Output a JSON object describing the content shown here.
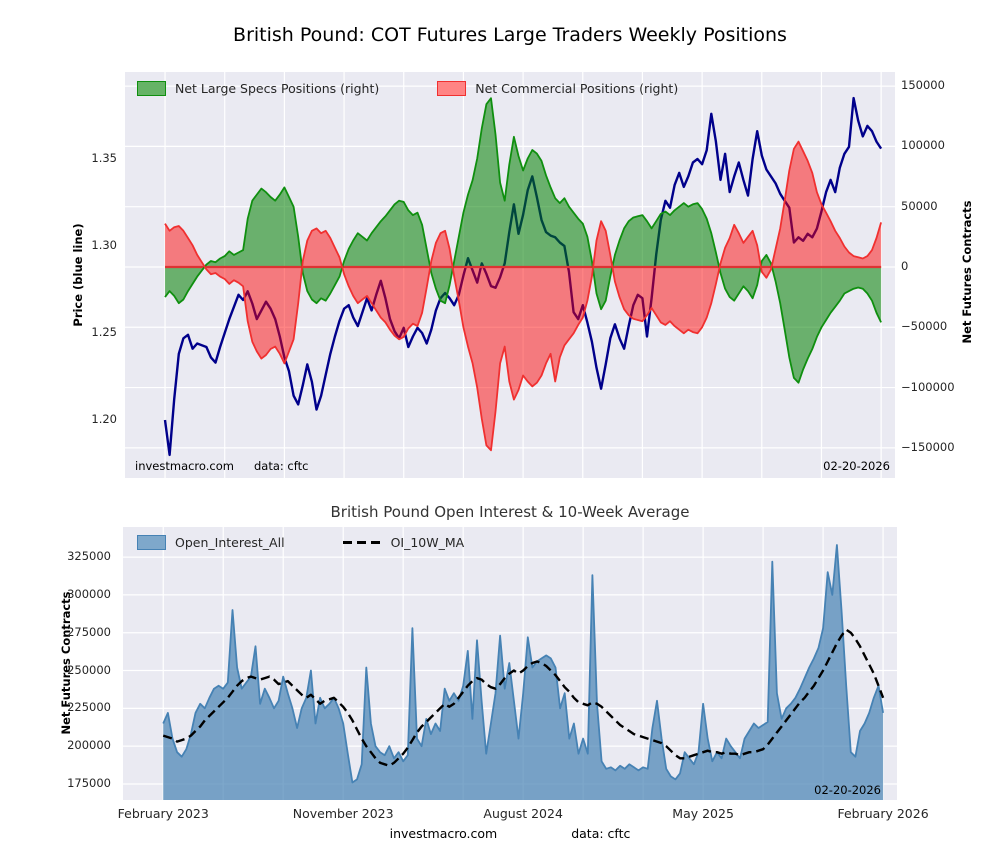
{
  "figure": {
    "title": "British Pound: COT Futures Large Traders Weekly Positions",
    "footer_source": "investmacro.com",
    "footer_data": "data: cftc"
  },
  "top_chart": {
    "legend_specs": "Net Large Specs Positions (right)",
    "legend_comm": "Net Commercial Positions (right)",
    "ylabel_left": "Price (blue line)",
    "ylabel_right": "Net Futures Contracts",
    "annotation_source": "investmacro.com",
    "annotation_data": "data: cftc",
    "annotation_date": "02-20-2026"
  },
  "bottom_chart": {
    "title": "British Pound Open Interest & 10-Week Average",
    "legend_oi": "Open_Interest_All",
    "legend_ma": "OI_10W_MA",
    "ylabel": "Net Futures Contracts",
    "annotation_date": "02-20-2026"
  },
  "colors": {
    "axes_bg": "#eaeaf2",
    "grid": "#ffffff",
    "price_line": "#00008b",
    "specs_fill": "rgba(0,128,0,0.55)",
    "specs_edge": "#0f8f0f",
    "comm_fill": "rgba(255,0,0,0.48)",
    "comm_edge": "#f03030",
    "zero_line": "#dd3333",
    "oi_fill": "rgba(70,130,180,0.7)",
    "oi_edge": "#4682b4",
    "ma_line": "#000000",
    "legend_specs_swatch": "#66b366",
    "legend_comm_swatch": "#ff8484",
    "legend_oi_swatch": "#7ea8cb"
  },
  "chart_data": [
    {
      "type": "area+line",
      "title": "British Pound: COT Futures Large Traders Weekly Positions",
      "weeks": 157,
      "x_unit": "week_index (Feb 2023 - Feb 2026, weekly)",
      "x_frac_start": 0.052,
      "x_frac_end": 0.982,
      "x_ticks": [
        {
          "week": 0,
          "label": "February 2023"
        },
        {
          "week": 39,
          "label": "November 2023"
        },
        {
          "week": 78,
          "label": "August 2024"
        },
        {
          "week": 117,
          "label": "May 2025"
        },
        {
          "week": 156,
          "label": "February 2026"
        }
      ],
      "grid_interval_weeks": 13,
      "left_axis": {
        "label": "Price (blue line)",
        "range": [
          1.1667,
          1.4
        ],
        "ticks": [
          {
            "v": 1.2,
            "label": "1.20"
          },
          {
            "v": 1.25,
            "label": "1.25"
          },
          {
            "v": 1.3,
            "label": "1.30"
          },
          {
            "v": 1.35,
            "label": "1.35"
          }
        ]
      },
      "right_axis": {
        "label": "Net Futures Contracts",
        "range": [
          -175000,
          161700
        ],
        "ticks": [
          {
            "v": 150000,
            "label": "150000"
          },
          {
            "v": 100000,
            "label": "100000"
          },
          {
            "v": 50000,
            "label": "50000"
          },
          {
            "v": 0,
            "label": "0"
          },
          {
            "v": -50000,
            "label": "−50000"
          },
          {
            "v": -100000,
            "label": "−100000"
          },
          {
            "v": -150000,
            "label": "−150000"
          }
        ]
      },
      "contracts_scale": 1000,
      "annotations": [
        "investmacro.com",
        "data: cftc",
        "02-20-2026"
      ],
      "series": {
        "price": [
          1.2,
          1.18,
          1.212,
          1.238,
          1.247,
          1.249,
          1.241,
          1.244,
          1.243,
          1.242,
          1.236,
          1.233,
          1.242,
          1.25,
          1.258,
          1.265,
          1.272,
          1.269,
          1.274,
          1.267,
          1.258,
          1.263,
          1.268,
          1.264,
          1.258,
          1.248,
          1.236,
          1.228,
          1.214,
          1.209,
          1.22,
          1.232,
          1.222,
          1.206,
          1.214,
          1.226,
          1.238,
          1.248,
          1.257,
          1.264,
          1.266,
          1.259,
          1.254,
          1.262,
          1.27,
          1.263,
          1.272,
          1.28,
          1.27,
          1.258,
          1.251,
          1.247,
          1.253,
          1.242,
          1.248,
          1.253,
          1.25,
          1.244,
          1.252,
          1.263,
          1.27,
          1.273,
          1.27,
          1.266,
          1.272,
          1.283,
          1.293,
          1.286,
          1.279,
          1.29,
          1.284,
          1.277,
          1.276,
          1.282,
          1.29,
          1.308,
          1.324,
          1.307,
          1.318,
          1.332,
          1.34,
          1.328,
          1.315,
          1.308,
          1.306,
          1.305,
          1.302,
          1.3,
          1.285,
          1.262,
          1.258,
          1.266,
          1.256,
          1.245,
          1.23,
          1.218,
          1.232,
          1.247,
          1.255,
          1.247,
          1.241,
          1.254,
          1.266,
          1.272,
          1.27,
          1.248,
          1.27,
          1.295,
          1.315,
          1.326,
          1.322,
          1.335,
          1.342,
          1.334,
          1.34,
          1.348,
          1.35,
          1.347,
          1.355,
          1.376,
          1.36,
          1.338,
          1.353,
          1.331,
          1.34,
          1.348,
          1.338,
          1.329,
          1.35,
          1.366,
          1.352,
          1.344,
          1.34,
          1.336,
          1.33,
          1.326,
          1.322,
          1.302,
          1.305,
          1.303,
          1.307,
          1.305,
          1.31,
          1.32,
          1.331,
          1.338,
          1.331,
          1.345,
          1.353,
          1.357,
          1.385,
          1.372,
          1.363,
          1.369,
          1.366,
          1.36,
          1.356
        ],
        "net_large_specs_thousands": [
          -25,
          -20,
          -24,
          -30,
          -27,
          -20,
          -14,
          -8,
          -3,
          2,
          5,
          4,
          7,
          9,
          13,
          10,
          12,
          14,
          40,
          55,
          60,
          65,
          62,
          58,
          55,
          60,
          66,
          58,
          50,
          25,
          -5,
          -20,
          -27,
          -30,
          -26,
          -28,
          -22,
          -15,
          -8,
          5,
          15,
          22,
          28,
          25,
          22,
          28,
          33,
          38,
          42,
          47,
          52,
          55,
          54,
          47,
          43,
          45,
          35,
          15,
          -5,
          -18,
          -28,
          -30,
          -15,
          5,
          25,
          45,
          60,
          72,
          90,
          115,
          135,
          140,
          110,
          70,
          55,
          85,
          108,
          92,
          80,
          90,
          97,
          94,
          88,
          76,
          66,
          57,
          53,
          57,
          50,
          45,
          40,
          36,
          25,
          5,
          -22,
          -35,
          -28,
          -8,
          10,
          22,
          32,
          38,
          41,
          42,
          43,
          38,
          32,
          38,
          44,
          46,
          43,
          47,
          50,
          53,
          50,
          52,
          53,
          48,
          40,
          28,
          12,
          -5,
          -18,
          -25,
          -28,
          -22,
          -16,
          -20,
          -26,
          -15,
          5,
          10,
          3,
          -12,
          -30,
          -52,
          -75,
          -92,
          -96,
          -85,
          -76,
          -68,
          -58,
          -50,
          -44,
          -38,
          -33,
          -28,
          -22,
          -20,
          -18,
          -17,
          -18,
          -22,
          -28,
          -38,
          -46
        ],
        "net_commercial_thousands": [
          36,
          30,
          33,
          34,
          30,
          24,
          18,
          10,
          4,
          -2,
          -6,
          -5,
          -8,
          -10,
          -14,
          -11,
          -13,
          -16,
          -45,
          -62,
          -70,
          -76,
          -73,
          -68,
          -66,
          -72,
          -80,
          -70,
          -60,
          -30,
          5,
          22,
          30,
          32,
          28,
          30,
          24,
          16,
          8,
          -6,
          -16,
          -24,
          -30,
          -27,
          -24,
          -30,
          -36,
          -42,
          -46,
          -52,
          -57,
          -60,
          -58,
          -51,
          -47,
          -49,
          -38,
          -17,
          5,
          20,
          28,
          30,
          15,
          -8,
          -28,
          -50,
          -66,
          -80,
          -100,
          -126,
          -148,
          -152,
          -120,
          -80,
          -66,
          -95,
          -110,
          -102,
          -90,
          -95,
          -99,
          -96,
          -90,
          -80,
          -72,
          -95,
          -75,
          -65,
          -60,
          -55,
          -48,
          -42,
          -28,
          -8,
          22,
          38,
          30,
          10,
          -12,
          -25,
          -35,
          -40,
          -43,
          -44,
          -45,
          -40,
          -34,
          -40,
          -46,
          -48,
          -45,
          -49,
          -52,
          -55,
          -52,
          -54,
          -55,
          -50,
          -42,
          -30,
          -14,
          3,
          16,
          24,
          35,
          28,
          20,
          25,
          30,
          18,
          -4,
          -9,
          -2,
          15,
          32,
          55,
          80,
          98,
          104,
          96,
          88,
          78,
          62,
          52,
          45,
          38,
          30,
          24,
          17,
          12,
          9,
          8,
          7,
          9,
          14,
          24,
          37
        ]
      }
    },
    {
      "type": "area+line",
      "title": "British Pound Open Interest & 10-Week Average",
      "weeks": 157,
      "x_unit": "week_index (Feb 2023 - Feb 2026, weekly)",
      "x_frac_start": 0.052,
      "x_frac_end": 0.982,
      "x_ticks": [
        {
          "week": 0,
          "label": "February 2023"
        },
        {
          "week": 39,
          "label": "November 2023"
        },
        {
          "week": 78,
          "label": "August 2024"
        },
        {
          "week": 117,
          "label": "May 2025"
        },
        {
          "week": 156,
          "label": "February 2026"
        }
      ],
      "grid_interval_weeks": 13,
      "y_axis": {
        "label": "Net Futures Contracts",
        "range": [
          164400,
          344900
        ],
        "ticks": [
          {
            "v": 175000,
            "label": "175000"
          },
          {
            "v": 200000,
            "label": "200000"
          },
          {
            "v": 225000,
            "label": "225000"
          },
          {
            "v": 250000,
            "label": "250000"
          },
          {
            "v": 275000,
            "label": "275000"
          },
          {
            "v": 300000,
            "label": "300000"
          },
          {
            "v": 325000,
            "label": "325000"
          }
        ]
      },
      "contracts_scale": 1000,
      "annotations": [
        "02-20-2026"
      ],
      "series": {
        "open_interest_thousands": [
          215,
          222,
          205,
          196,
          193,
          198,
          208,
          222,
          228,
          225,
          232,
          238,
          240,
          238,
          242,
          290,
          252,
          238,
          242,
          246,
          266,
          228,
          238,
          232,
          225,
          230,
          246,
          235,
          225,
          212,
          225,
          232,
          250,
          215,
          232,
          225,
          228,
          232,
          225,
          215,
          195,
          176,
          178,
          188,
          252,
          215,
          200,
          196,
          194,
          200,
          192,
          196,
          190,
          194,
          278,
          205,
          200,
          218,
          208,
          215,
          210,
          238,
          230,
          235,
          230,
          240,
          263,
          218,
          270,
          230,
          195,
          215,
          235,
          273,
          238,
          255,
          230,
          205,
          235,
          272,
          252,
          256,
          258,
          260,
          258,
          252,
          225,
          235,
          205,
          215,
          195,
          205,
          195,
          313,
          228,
          190,
          185,
          186,
          184,
          187,
          185,
          188,
          186,
          184,
          186,
          185,
          212,
          230,
          205,
          185,
          180,
          178,
          182,
          196,
          192,
          188,
          196,
          228,
          205,
          190,
          196,
          192,
          205,
          200,
          196,
          192,
          205,
          210,
          215,
          212,
          214,
          216,
          322,
          235,
          218,
          225,
          228,
          232,
          238,
          245,
          252,
          258,
          265,
          278,
          315,
          300,
          333,
          290,
          240,
          196,
          193,
          210,
          215,
          222,
          232,
          240,
          222
        ],
        "oi_10w_ma_thousands": [
          207,
          206,
          205,
          203,
          204,
          205,
          207,
          210,
          213,
          217,
          220,
          223,
          226,
          229,
          232,
          236,
          240,
          243,
          245,
          246,
          245,
          244,
          245,
          246,
          244,
          241,
          242,
          243,
          240,
          237,
          234,
          232,
          234,
          231,
          228,
          230,
          231,
          232,
          229,
          226,
          222,
          217,
          211,
          205,
          200,
          196,
          192,
          189,
          188,
          187,
          189,
          192,
          195,
          199,
          204,
          209,
          213,
          216,
          219,
          222,
          225,
          228,
          226,
          228,
          232,
          236,
          240,
          243,
          245,
          244,
          241,
          239,
          238,
          241,
          245,
          248,
          250,
          248,
          250,
          253,
          255,
          256,
          255,
          253,
          250,
          247,
          243,
          239,
          236,
          232,
          229,
          228,
          227,
          229,
          228,
          226,
          223,
          220,
          217,
          214,
          212,
          210,
          208,
          207,
          206,
          205,
          204,
          203,
          202,
          200,
          197,
          194,
          192,
          192,
          193,
          194,
          195,
          196,
          197,
          196,
          196,
          195,
          196,
          195,
          195,
          194,
          195,
          196,
          196,
          197,
          198,
          201,
          205,
          209,
          213,
          217,
          221,
          225,
          229,
          232,
          236,
          240,
          245,
          250,
          256,
          262,
          268,
          273,
          277,
          275,
          271,
          266,
          260,
          254,
          248,
          240,
          232
        ]
      }
    }
  ]
}
